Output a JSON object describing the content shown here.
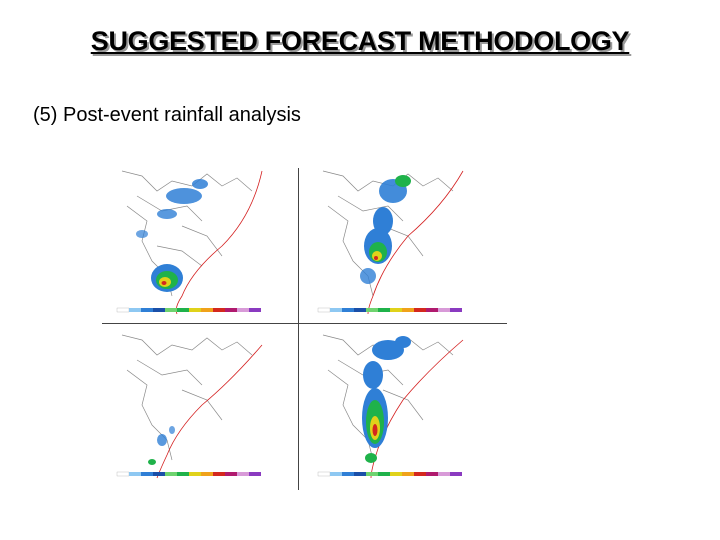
{
  "slide": {
    "title": "SUGGESTED FORECAST METHODOLOGY",
    "subtitle": "(5) Post-event rainfall analysis"
  },
  "colors": {
    "storm_track": "#d42020",
    "map_outline": "#8a8a8a",
    "rain_light": "#2f7fd6",
    "rain_medium": "#1fb24a",
    "rain_heavy": "#e0d21a",
    "rain_extreme": "#d4281e"
  }
}
